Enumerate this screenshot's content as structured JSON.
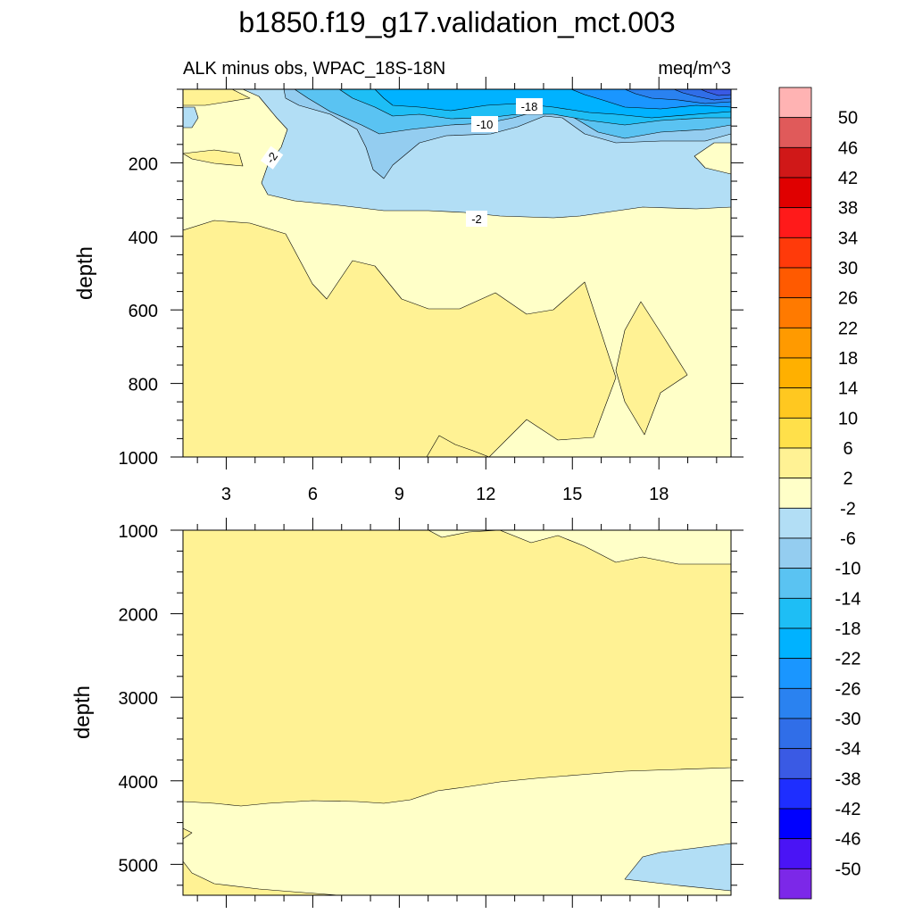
{
  "chart_data": {
    "type": "contour",
    "title": "b1850.f19_g17.validation_mct.003",
    "subtitle_left": "ALK minus obs, WPAC_18S-18N",
    "subtitle_right": "meq/m^3",
    "ylabel": "depth",
    "x_ticks": [
      "3",
      "6",
      "9",
      "12",
      "15",
      "18"
    ],
    "x_tick_values": [
      3,
      6,
      9,
      12,
      15,
      18
    ],
    "x_range": [
      1.5,
      20.5
    ],
    "upper_panel": {
      "y_range": [
        0,
        1000
      ],
      "y_ticks": [
        "200",
        "400",
        "600",
        "800",
        "1000"
      ],
      "y_tick_values": [
        200,
        400,
        600,
        800,
        1000
      ],
      "contour_labels": [
        "-18",
        "-10",
        "-2",
        "-2"
      ],
      "contour_label_values": [
        -18,
        -10,
        -2,
        -2
      ]
    },
    "lower_panel": {
      "y_range": [
        1000,
        5400
      ],
      "y_ticks": [
        "1000",
        "2000",
        "3000",
        "4000",
        "5000"
      ],
      "y_tick_values": [
        1000,
        2000,
        3000,
        4000,
        5000
      ]
    },
    "colorbar": {
      "labels": [
        "50",
        "46",
        "42",
        "38",
        "34",
        "30",
        "26",
        "22",
        "18",
        "14",
        "10",
        "6",
        "2",
        "-2",
        "-6",
        "-10",
        "-14",
        "-18",
        "-22",
        "-26",
        "-30",
        "-34",
        "-38",
        "-42",
        "-46",
        "-50"
      ],
      "colors": [
        "#ffb3b3",
        "#e05a5a",
        "#d01818",
        "#e00000",
        "#ff1a1a",
        "#ff3a0a",
        "#ff5a00",
        "#ff7a00",
        "#ff9a00",
        "#ffb000",
        "#ffc820",
        "#ffe04a",
        "#fff294",
        "#ffffc8",
        "#b2def5",
        "#94cdf0",
        "#5ac3f2",
        "#1ebef5",
        "#00b2ff",
        "#1a96ff",
        "#2a82f0",
        "#306ee8",
        "#3a5ae4",
        "#1e2eff",
        "#0000ff",
        "#4a14f5",
        "#7c28e8"
      ]
    },
    "fill_colors": {
      "neg2_pos2": "#ffffc8",
      "pos2_pos6": "#fff294",
      "neg6_neg2": "#b2def5",
      "neg10_neg6": "#94cdf0",
      "neg14_neg10": "#5ac3f2",
      "neg18_neg14": "#1ebef5",
      "neg22_neg18": "#00b2ff",
      "neg26_neg22": "#1a96ff",
      "neg30_neg26": "#2a82f0",
      "neg34_neg30": "#306ee8",
      "neg38_neg34": "#3a5ae4"
    }
  }
}
